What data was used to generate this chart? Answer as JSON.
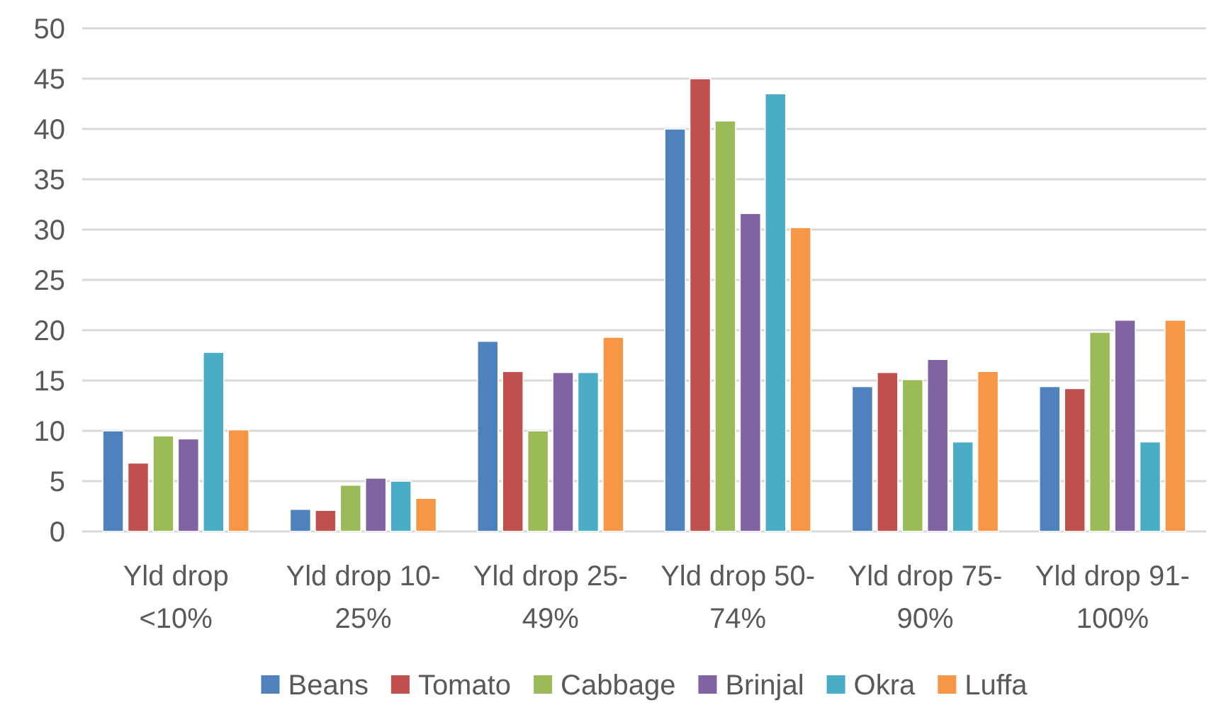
{
  "chart_data": {
    "type": "bar",
    "categories": [
      "Yld drop <10%",
      "Yld drop 10-25%",
      "Yld drop 25-49%",
      "Yld drop 50-74%",
      "Yld drop 75-90%",
      "Yld drop 91-100%"
    ],
    "series": [
      {
        "name": "Beans",
        "color": "#4f81bd",
        "values": [
          10,
          2.2,
          18.9,
          40,
          14.4,
          14.4
        ]
      },
      {
        "name": "Tomato",
        "color": "#c0504d",
        "values": [
          6.8,
          2.1,
          15.9,
          45,
          15.8,
          14.2
        ]
      },
      {
        "name": "Cabbage",
        "color": "#9bbb59",
        "values": [
          9.5,
          4.6,
          10,
          40.8,
          15.1,
          19.8
        ]
      },
      {
        "name": "Brinjal",
        "color": "#8064a2",
        "values": [
          9.2,
          5.3,
          15.8,
          31.6,
          17.1,
          21
        ]
      },
      {
        "name": "Okra",
        "color": "#4bacc6",
        "values": [
          17.8,
          5,
          15.8,
          43.5,
          8.9,
          8.9
        ]
      },
      {
        "name": "Luffa",
        "color": "#f79646",
        "values": [
          10.1,
          3.3,
          19.3,
          30.2,
          15.9,
          21
        ]
      }
    ],
    "ylim": [
      0,
      50
    ],
    "yticks": [
      0,
      5,
      10,
      15,
      20,
      25,
      30,
      35,
      40,
      45,
      50
    ],
    "grid": "y",
    "legend": "bottom"
  }
}
